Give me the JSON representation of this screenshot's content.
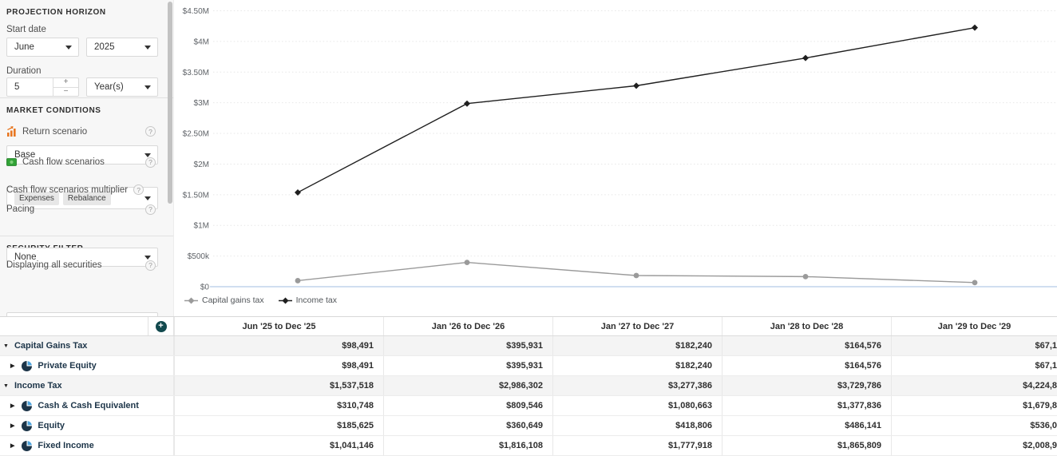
{
  "colors": {
    "teal_accent": "#12494e",
    "pie_navy": "#1c3448",
    "pie_slice_blue": "#4da3dc",
    "income_line": "#1f1f1f",
    "capital_line": "#9a9a9a",
    "zero_axis_line": "#b3cbe6",
    "return_icon_orange": "#e87722",
    "cash_icon_green": "#31a336"
  },
  "sidebar": {
    "projection_horizon": {
      "title": "PROJECTION HORIZON",
      "start_date_label": "Start date",
      "month": "June",
      "year": "2025",
      "duration_label": "Duration",
      "duration_value": "5",
      "duration_plus": "+",
      "duration_minus": "−",
      "duration_unit": "Year(s)"
    },
    "market_conditions": {
      "title": "MARKET CONDITIONS",
      "return_scenario_label": "Return scenario",
      "return_scenario_value": "Base",
      "cash_flow_label": "Cash flow scenarios",
      "cash_flow_tags": [
        "Expenses",
        "Rebalance"
      ],
      "multiplier_label": "Cash flow scenarios multiplier",
      "multiplier_state": "off",
      "pacing_label": "Pacing",
      "pacing_value": "None",
      "help_glyph": "?"
    },
    "security_filter": {
      "title": "SECURITY FILTER",
      "display_label": "Displaying all securities"
    }
  },
  "chart_data": {
    "type": "line",
    "title": "",
    "xlabel": "",
    "ylabel": "",
    "categories": [
      "Jun '25 to Dec '25",
      "Jan '26 to Dec '26",
      "Jan '27 to Dec '27",
      "Jan '28 to Dec '28",
      "Jan '29 to Dec '29"
    ],
    "series": [
      {
        "name": "Capital gains tax",
        "color": "#9a9a9a",
        "marker": "circle",
        "values": [
          98491,
          395931,
          182240,
          164576,
          67100
        ]
      },
      {
        "name": "Income tax",
        "color": "#1f1f1f",
        "marker": "diamond",
        "values": [
          1537518,
          2986302,
          3277386,
          3729786,
          4224800
        ]
      }
    ],
    "ylim": [
      0,
      4500000
    ],
    "y_ticks": [
      {
        "label": "$0",
        "value": 0
      },
      {
        "label": "$500k",
        "value": 500000
      },
      {
        "label": "$1M",
        "value": 1000000
      },
      {
        "label": "$1.50M",
        "value": 1500000
      },
      {
        "label": "$2M",
        "value": 2000000
      },
      {
        "label": "$2.50M",
        "value": 2500000
      },
      {
        "label": "$3M",
        "value": 3000000
      },
      {
        "label": "$3.50M",
        "value": 3500000
      },
      {
        "label": "$4M",
        "value": 4000000
      },
      {
        "label": "$4.50M",
        "value": 4500000
      }
    ],
    "grid": "horizontal-dotted",
    "legend_position": "bottom-left",
    "x_tick_labels_shown": false
  },
  "table": {
    "add_button_label": "+",
    "columns": [
      "Jun '25 to Dec '25",
      "Jan '26 to Dec '26",
      "Jan '27 to Dec '27",
      "Jan '28 to Dec '28",
      "Jan '29 to Dec '29"
    ],
    "rows": [
      {
        "label": "Capital Gains Tax",
        "level": 0,
        "expanded": true,
        "icon": null,
        "values": [
          "$98,491",
          "$395,931",
          "$182,240",
          "$164,576",
          "$67,1"
        ]
      },
      {
        "label": "Private Equity",
        "level": 1,
        "expanded": false,
        "icon": "pie-chart",
        "values": [
          "$98,491",
          "$395,931",
          "$182,240",
          "$164,576",
          "$67,1"
        ]
      },
      {
        "label": "Income Tax",
        "level": 0,
        "expanded": true,
        "icon": null,
        "values": [
          "$1,537,518",
          "$2,986,302",
          "$3,277,386",
          "$3,729,786",
          "$4,224,8"
        ]
      },
      {
        "label": "Cash & Cash Equivalent",
        "level": 1,
        "expanded": false,
        "icon": "pie-chart",
        "values": [
          "$310,748",
          "$809,546",
          "$1,080,663",
          "$1,377,836",
          "$1,679,8"
        ]
      },
      {
        "label": "Equity",
        "level": 1,
        "expanded": false,
        "icon": "pie-chart",
        "values": [
          "$185,625",
          "$360,649",
          "$418,806",
          "$486,141",
          "$536,0"
        ]
      },
      {
        "label": "Fixed Income",
        "level": 1,
        "expanded": false,
        "icon": "pie-chart",
        "values": [
          "$1,041,146",
          "$1,816,108",
          "$1,777,918",
          "$1,865,809",
          "$2,008,9"
        ]
      }
    ]
  }
}
